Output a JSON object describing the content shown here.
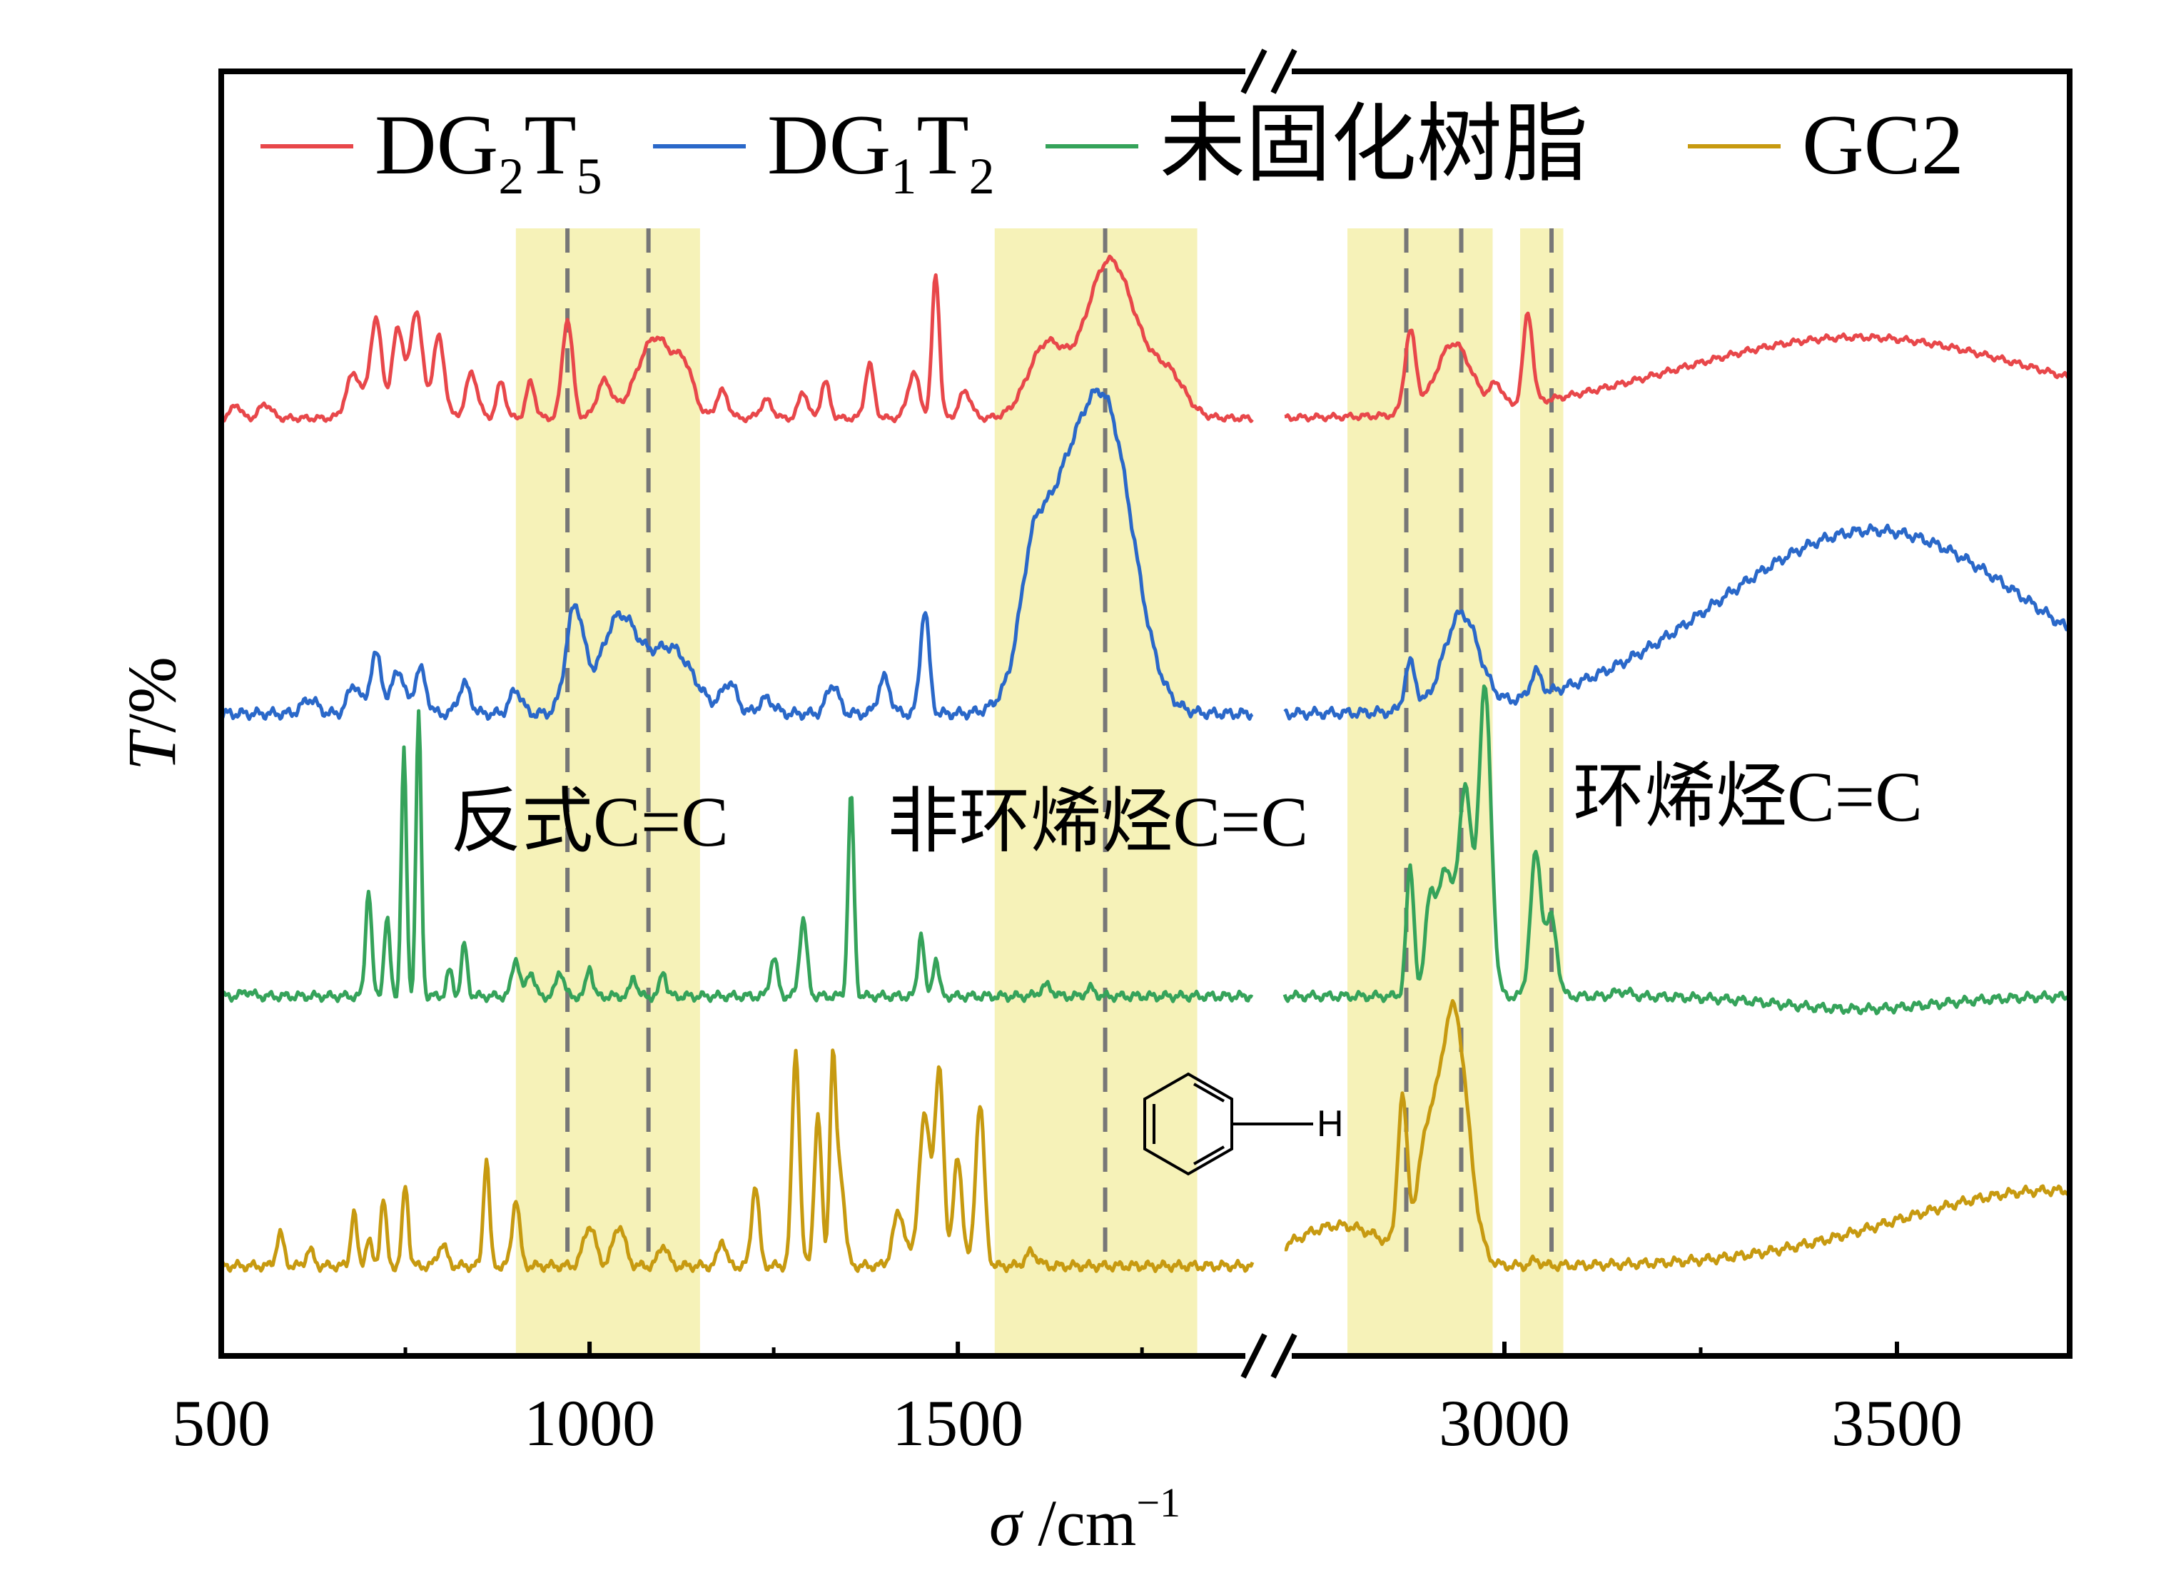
{
  "chart_data": {
    "type": "line",
    "xlabel_symbol": "σ",
    "xlabel_unit": " /cm",
    "xlabel_exp": "−1",
    "ylabel_symbol": "T",
    "ylabel_unit": "/%",
    "axis_break": true,
    "x_segments": [
      {
        "xlim": [
          500,
          1900
        ]
      },
      {
        "xlim": [
          2720,
          3720
        ]
      }
    ],
    "xticks": [
      {
        "value": 500,
        "label": "500"
      },
      {
        "value": 1000,
        "label": "1000"
      },
      {
        "value": 1500,
        "label": "1500"
      },
      {
        "value": 3000,
        "label": "3000"
      },
      {
        "value": 3500,
        "label": "3500"
      }
    ],
    "minor_xticks": [
      750,
      1250,
      1750,
      3250
    ],
    "legend": {
      "position": "top",
      "orientation": "horizontal"
    },
    "series": [
      {
        "name_main": "DG",
        "name_sub1": "2",
        "name_mid": "T",
        "name_sub2": "5",
        "color": "#e8474a",
        "offset": 0.73,
        "width": 0.14,
        "peaks": [
          [
            520,
            0.08,
            6
          ],
          [
            560,
            0.08,
            8
          ],
          [
            680,
            0.25,
            10
          ],
          [
            710,
            0.55,
            8
          ],
          [
            740,
            0.5,
            8
          ],
          [
            765,
            0.6,
            8
          ],
          [
            795,
            0.45,
            8
          ],
          [
            840,
            0.25,
            8
          ],
          [
            880,
            0.2,
            6
          ],
          [
            920,
            0.2,
            6
          ],
          [
            970,
            0.55,
            7
          ],
          [
            1020,
            0.2,
            10
          ],
          [
            1090,
            0.45,
            25
          ],
          [
            1130,
            0.2,
            12
          ],
          [
            1180,
            0.15,
            8
          ],
          [
            1240,
            0.1,
            8
          ],
          [
            1290,
            0.15,
            6
          ],
          [
            1320,
            0.2,
            6
          ],
          [
            1380,
            0.3,
            6
          ],
          [
            1440,
            0.25,
            8
          ],
          [
            1470,
            0.8,
            5
          ],
          [
            1510,
            0.15,
            8
          ],
          [
            1620,
            0.4,
            25
          ],
          [
            1700,
            0.6,
            30
          ],
          [
            1730,
            0.35,
            40
          ],
          [
            1790,
            0.15,
            20
          ],
          [
            2880,
            0.45,
            7
          ],
          [
            2935,
            0.38,
            22
          ],
          [
            2990,
            0.12,
            8
          ],
          [
            3030,
            0.5,
            6
          ],
          [
            3450,
            0.45,
            230
          ]
        ]
      },
      {
        "name_main": "DG",
        "name_sub1": "1",
        "name_mid": "T",
        "name_sub2": "2",
        "color": "#2a68c9",
        "offset": 0.5,
        "width": 0.23,
        "peaks": [
          [
            620,
            0.05,
            10
          ],
          [
            680,
            0.1,
            8
          ],
          [
            710,
            0.2,
            8
          ],
          [
            740,
            0.15,
            8
          ],
          [
            770,
            0.15,
            8
          ],
          [
            830,
            0.1,
            8
          ],
          [
            900,
            0.08,
            8
          ],
          [
            980,
            0.35,
            12
          ],
          [
            1040,
            0.32,
            25
          ],
          [
            1110,
            0.22,
            30
          ],
          [
            1190,
            0.1,
            10
          ],
          [
            1240,
            0.05,
            10
          ],
          [
            1330,
            0.1,
            8
          ],
          [
            1400,
            0.12,
            8
          ],
          [
            1455,
            0.35,
            6
          ],
          [
            1630,
            0.55,
            35
          ],
          [
            1700,
            1.0,
            38
          ],
          [
            1600,
            0.2,
            15
          ],
          [
            2880,
            0.16,
            7
          ],
          [
            2945,
            0.32,
            22
          ],
          [
            3040,
            0.08,
            7
          ],
          [
            3470,
            0.62,
            200
          ]
        ]
      },
      {
        "name_main": "未固化树脂",
        "name_sub1": "",
        "name_mid": "",
        "name_sub2": "",
        "name_plain": true,
        "color": "#35a35a",
        "offset": 0.28,
        "width": 0.2,
        "peaks": [
          [
            535,
            0.02,
            6
          ],
          [
            700,
            0.42,
            4
          ],
          [
            725,
            0.3,
            4
          ],
          [
            748,
            0.95,
            3.5
          ],
          [
            768,
            1.1,
            3.5
          ],
          [
            810,
            0.1,
            4
          ],
          [
            830,
            0.2,
            4
          ],
          [
            900,
            0.15,
            5
          ],
          [
            920,
            0.1,
            5
          ],
          [
            960,
            0.1,
            5
          ],
          [
            1000,
            0.12,
            4
          ],
          [
            1060,
            0.08,
            4
          ],
          [
            1100,
            0.1,
            4
          ],
          [
            1250,
            0.15,
            5
          ],
          [
            1290,
            0.3,
            5
          ],
          [
            1355,
            0.78,
            4
          ],
          [
            1450,
            0.25,
            4
          ],
          [
            1470,
            0.15,
            4
          ],
          [
            1620,
            0.04,
            8
          ],
          [
            1680,
            0.03,
            6
          ],
          [
            2880,
            0.5,
            5
          ],
          [
            2905,
            0.35,
            6
          ],
          [
            2925,
            0.5,
            10
          ],
          [
            2950,
            0.8,
            8
          ],
          [
            2975,
            1.2,
            8
          ],
          [
            3040,
            0.55,
            7
          ],
          [
            3060,
            0.3,
            7
          ],
          [
            3150,
            0.02,
            10
          ],
          [
            3450,
            -0.05,
            100
          ]
        ]
      },
      {
        "name_main": "GC2",
        "name_sub1": "",
        "name_mid": "",
        "name_sub2": "",
        "name_plain": true,
        "color": "#c79a10",
        "offset": 0.07,
        "width": 0.21,
        "peaks": [
          [
            580,
            0.12,
            5
          ],
          [
            620,
            0.06,
            5
          ],
          [
            680,
            0.2,
            4
          ],
          [
            700,
            0.1,
            4
          ],
          [
            720,
            0.25,
            4
          ],
          [
            750,
            0.3,
            4
          ],
          [
            800,
            0.08,
            6
          ],
          [
            860,
            0.4,
            4
          ],
          [
            900,
            0.25,
            5
          ],
          [
            1000,
            0.15,
            8
          ],
          [
            1040,
            0.15,
            8
          ],
          [
            1100,
            0.08,
            6
          ],
          [
            1180,
            0.1,
            5
          ],
          [
            1225,
            0.3,
            5
          ],
          [
            1280,
            0.8,
            5
          ],
          [
            1310,
            0.55,
            5
          ],
          [
            1330,
            0.7,
            4
          ],
          [
            1340,
            0.35,
            6
          ],
          [
            1420,
            0.2,
            8
          ],
          [
            1455,
            0.55,
            8
          ],
          [
            1475,
            0.7,
            6
          ],
          [
            1500,
            0.4,
            6
          ],
          [
            1530,
            0.6,
            6
          ],
          [
            1600,
            0.05,
            8
          ],
          [
            2790,
            0.15,
            60
          ],
          [
            2870,
            0.55,
            6
          ],
          [
            2935,
            0.95,
            18
          ],
          [
            2900,
            0.35,
            12
          ],
          [
            3040,
            0.02,
            6
          ],
          [
            3700,
            0.28,
            200
          ]
        ]
      }
    ],
    "bands": [
      {
        "from": 900,
        "to": 1150
      },
      {
        "from": 1550,
        "to": 1825
      },
      {
        "from": 2800,
        "to": 2985
      },
      {
        "from": 3020,
        "to": 3075
      }
    ],
    "dashed_lines": [
      970,
      1080,
      1700,
      2875,
      2945,
      3060
    ],
    "annotations": [
      {
        "text": "反式C=C",
        "x": 1000,
        "anchor": "middle"
      },
      {
        "text": "非环烯烃C=C",
        "x": 1690,
        "anchor": "middle"
      },
      {
        "text": "环烯烃C=C",
        "x": 3310,
        "anchor": "middle"
      }
    ],
    "structure_label": "H"
  }
}
